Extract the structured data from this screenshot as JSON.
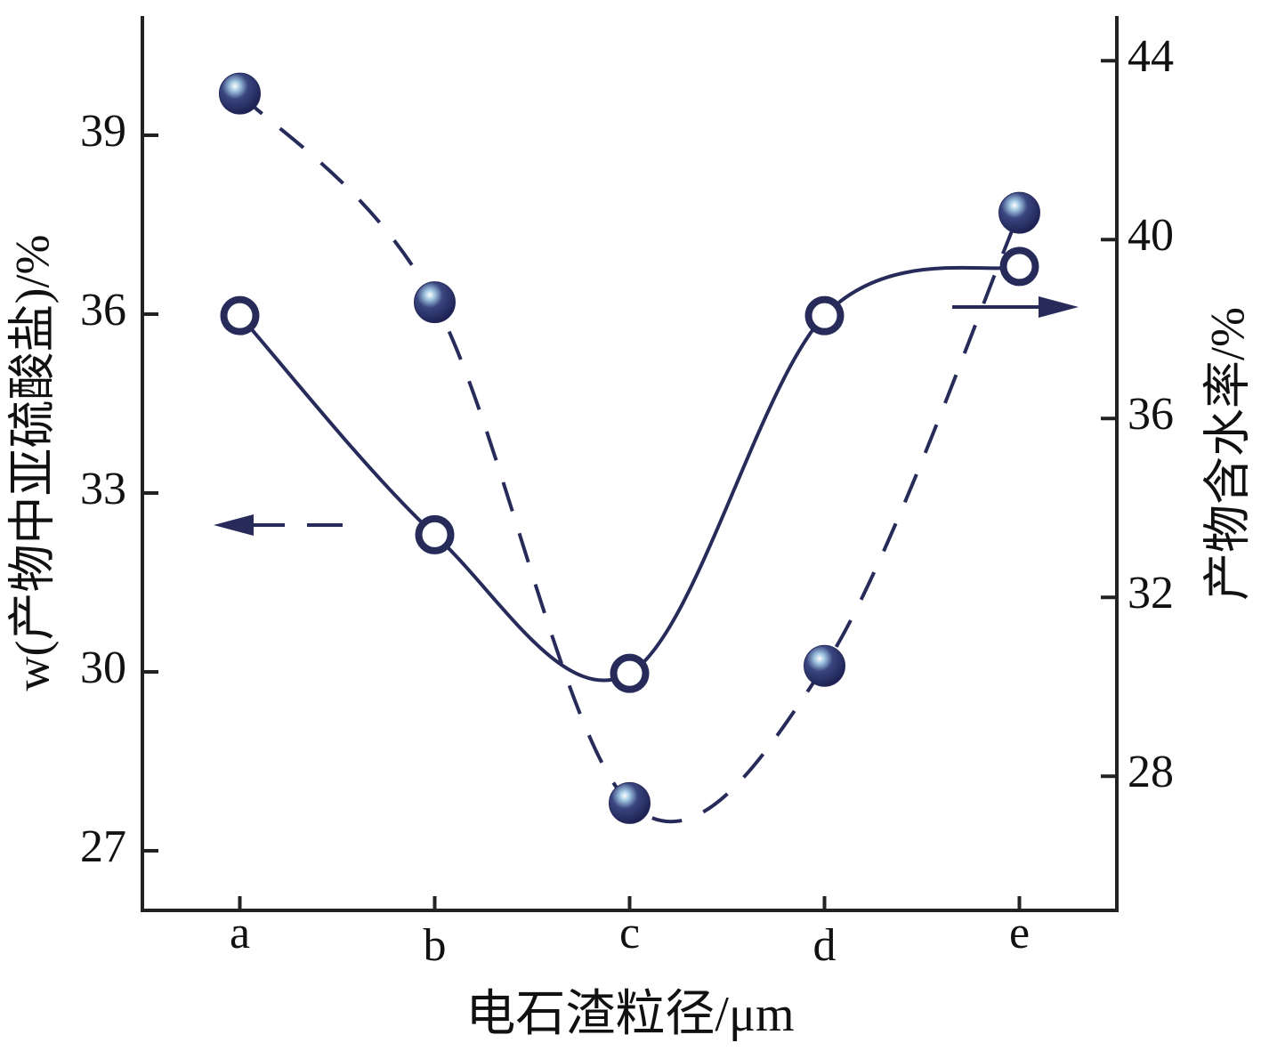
{
  "chart_data": {
    "type": "line",
    "x_label": "电石渣粒径/μm",
    "y_label": "w(产物中亚硫酸盐)/%",
    "y2_label": "产物含水率/%",
    "categories": [
      "a",
      "b",
      "c",
      "d",
      "e"
    ],
    "ylim": [
      26,
      41
    ],
    "yticks": [
      27,
      30,
      33,
      36,
      39
    ],
    "y2lim": [
      25,
      45
    ],
    "y2ticks": [
      28,
      32,
      36,
      40,
      44
    ],
    "series": [
      {
        "color": "#262b5a",
        "marker": "filled",
        "line": "dashed",
        "values": [
          39.7,
          36.2,
          27.8,
          30.1,
          37.7
        ]
      },
      {
        "color": "#262b5a",
        "marker": "hollow",
        "line": "solid",
        "axis": "y2",
        "values": [
          38.3,
          33.4,
          30.3,
          38.3,
          39.4
        ]
      }
    ]
  }
}
